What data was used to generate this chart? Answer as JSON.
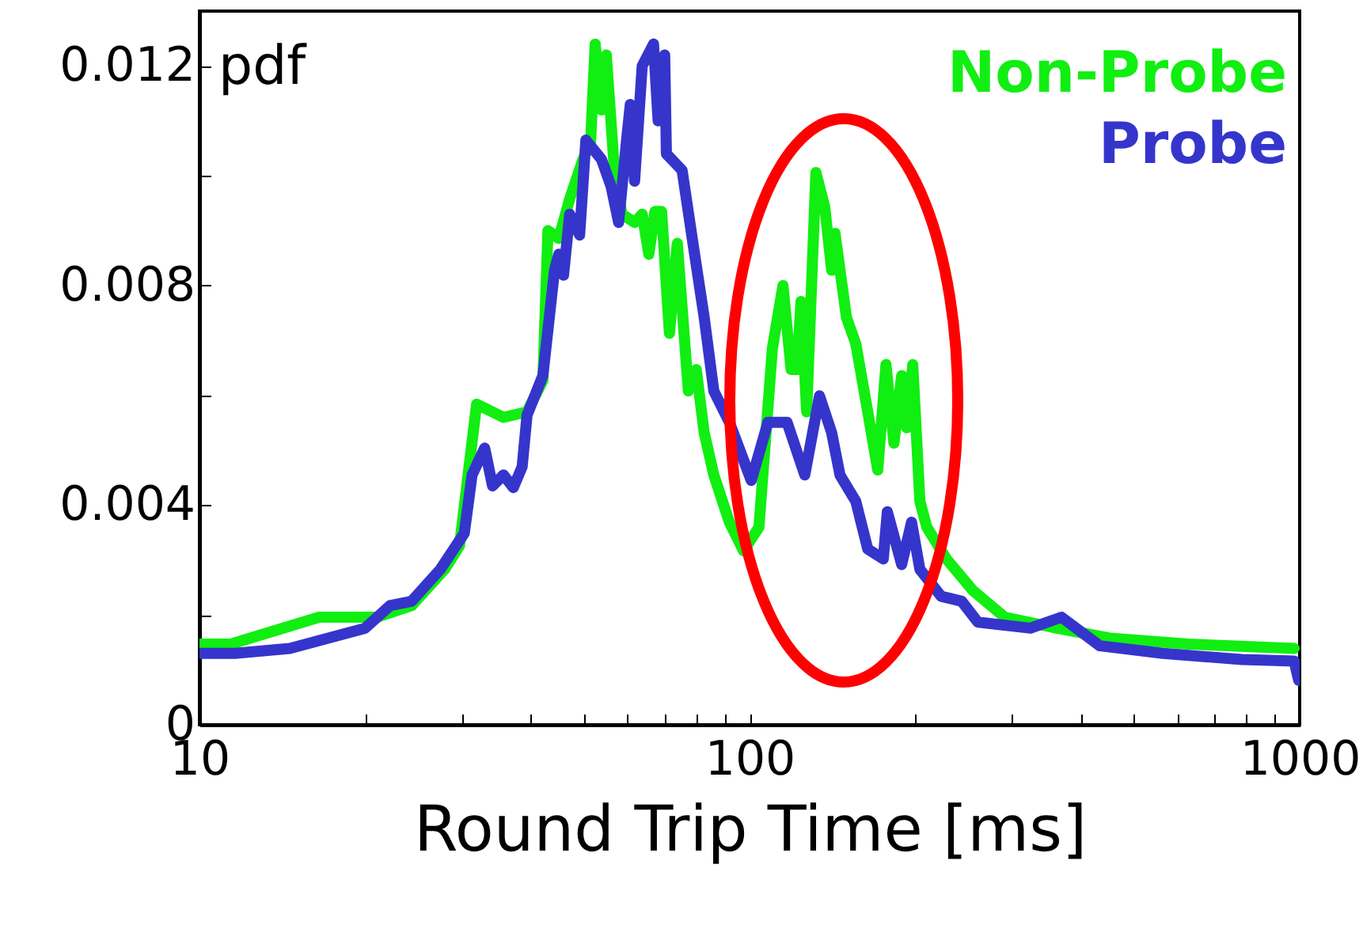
{
  "chart_data": {
    "type": "line",
    "xlabel": "Round Trip Time [ms]",
    "annotations": [
      "pdf"
    ],
    "log": "x",
    "grid": false,
    "legend": "top right",
    "marker": "none",
    "line_style": "solid",
    "xlim": [
      10,
      1000
    ],
    "xticks": [
      10,
      {
        "value": 20,
        "label": null
      },
      {
        "value": 30,
        "label": null
      },
      {
        "value": 40,
        "label": null
      },
      {
        "value": 50,
        "label": null
      },
      {
        "value": 60,
        "label": null
      },
      {
        "value": 70,
        "label": null
      },
      {
        "value": 80,
        "label": null
      },
      {
        "value": 90,
        "label": null
      },
      100,
      {
        "value": 200,
        "label": null
      },
      {
        "value": 300,
        "label": null
      },
      {
        "value": 400,
        "label": null
      },
      {
        "value": 500,
        "label": null
      },
      {
        "value": 600,
        "label": null
      },
      {
        "value": 700,
        "label": null
      },
      {
        "value": 800,
        "label": null
      },
      {
        "value": 900,
        "label": null
      },
      1000
    ],
    "ylim": [
      0,
      0.013
    ],
    "yticks": [
      0,
      {
        "value": 0.002,
        "label": null
      },
      0.004,
      {
        "value": 0.006,
        "label": null
      },
      0.008,
      {
        "value": 0.01,
        "label": null
      },
      0.012
    ],
    "series": [
      {
        "name": "Non-Probe",
        "color": "#11ee11",
        "x": [
          10,
          11.4,
          16.5,
          21.0,
          24.3,
          27.9,
          29.7,
          31.9,
          35.7,
          39.4,
          42.1,
          43.0,
          45.0,
          47.1,
          49.8,
          51.4,
          52.4,
          53.8,
          54.9,
          56.7,
          58.6,
          61.8,
          63.8,
          65.6,
          67.3,
          69.2,
          71.5,
          73.9,
          77.4,
          80.0,
          82.7,
          86.1,
          91.9,
          97.5,
          104,
          110,
          115,
          119,
          122,
          124,
          127,
          132,
          137,
          141,
          143,
          150,
          156,
          164,
          171,
          177,
          183,
          189,
          193,
          198,
          204,
          210,
          228,
          255,
          291,
          362,
          451,
          627,
          977
        ],
        "values": [
          0.00147,
          0.00147,
          0.00196,
          0.00196,
          0.00217,
          0.00283,
          0.00326,
          0.00584,
          0.0056,
          0.0057,
          0.00627,
          0.009,
          0.00886,
          0.00958,
          0.0103,
          0.0106,
          0.0124,
          0.0112,
          0.0122,
          0.0102,
          0.0093,
          0.00915,
          0.0093,
          0.00857,
          0.00935,
          0.00935,
          0.00713,
          0.00877,
          0.00608,
          0.00647,
          0.00532,
          0.00455,
          0.00369,
          0.00317,
          0.0036,
          0.00685,
          0.008,
          0.00647,
          0.00647,
          0.00771,
          0.0057,
          0.01006,
          0.00943,
          0.00828,
          0.00895,
          0.00742,
          0.00694,
          0.0057,
          0.00464,
          0.00656,
          0.00513,
          0.00636,
          0.00541,
          0.00656,
          0.00407,
          0.0036,
          0.00302,
          0.00244,
          0.00196,
          0.00176,
          0.00158,
          0.00147,
          0.00139
        ]
      },
      {
        "name": "Probe",
        "color": "#3535cc",
        "x": [
          10,
          11.6,
          14.6,
          20.0,
          22.2,
          24.3,
          27.4,
          30.3,
          31.3,
          33.0,
          34.1,
          35.7,
          37.2,
          38.6,
          39.4,
          42.1,
          44.2,
          45.0,
          45.9,
          47.1,
          49.1,
          50.4,
          53.8,
          56.0,
          57.8,
          59.8,
          60.7,
          61.8,
          63.8,
          66.9,
          68.2,
          70.1,
          70.6,
          75.4,
          78.9,
          82.7,
          86.1,
          91.9,
          100.7,
          108,
          117,
          126,
          134,
          141,
          146,
          156,
          164,
          175,
          178,
          189,
          197,
          204,
          223,
          243,
          260,
          324,
          369,
          433,
          564,
          785,
          977,
          996
        ],
        "values": [
          0.0013,
          0.0013,
          0.00139,
          0.00176,
          0.00217,
          0.00225,
          0.00283,
          0.00349,
          0.00455,
          0.00504,
          0.00435,
          0.00455,
          0.00432,
          0.0047,
          0.00564,
          0.00636,
          0.00828,
          0.00857,
          0.00819,
          0.0093,
          0.00892,
          0.01065,
          0.0103,
          0.00981,
          0.00915,
          0.01068,
          0.0113,
          0.0099,
          0.012,
          0.0124,
          0.011,
          0.0122,
          0.0104,
          0.0101,
          0.00877,
          0.00742,
          0.00608,
          0.00551,
          0.00445,
          0.00551,
          0.00551,
          0.00455,
          0.00599,
          0.00532,
          0.00455,
          0.00407,
          0.0032,
          0.00302,
          0.00388,
          0.00292,
          0.00369,
          0.00283,
          0.00234,
          0.00225,
          0.00187,
          0.00176,
          0.00196,
          0.00144,
          0.0013,
          0.00119,
          0.00116,
          0.00081
        ]
      }
    ]
  }
}
